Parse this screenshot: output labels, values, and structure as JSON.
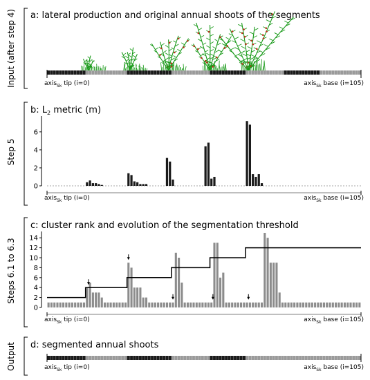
{
  "panels": {
    "a": {
      "side_label": "Input (after step 4)",
      "title": "a: lateral production and original annual shoots of the segments",
      "tip_label": [
        "axis",
        "Sk",
        " tip (i=0)"
      ],
      "base_label": [
        "axis",
        "Sk",
        " base (i=105)"
      ]
    },
    "b": {
      "side_label": "Step 5",
      "title": [
        "b: L",
        "2",
        " metric (m)"
      ],
      "tip_label": [
        "axis",
        "Sk",
        " tip (i=0)"
      ],
      "base_label": [
        "axis",
        "Sk",
        " base (i=105)"
      ]
    },
    "c": {
      "side_label": "Steps 6.1 to 6.3",
      "title": "c: cluster rank and evolution of the segmentation threshold",
      "tip_label": [
        "axis",
        "Sk",
        " tip (i=0)"
      ],
      "base_label": [
        "axis",
        "Sk",
        " base (i=105)"
      ]
    },
    "d": {
      "side_label": "Output",
      "title": "d: segmented annual shoots",
      "tip_label": [
        "axis",
        "Sk",
        " tip (i=0)"
      ],
      "base_label": [
        "axis",
        "Sk",
        " base (i=105)"
      ]
    }
  },
  "colors": {
    "bar_b": "#1a1a1a",
    "bar_c": "#8c8c8c",
    "line": "#000000",
    "shoot": "#1a9a1a",
    "fruit": "#c0301a",
    "segment_dark": "#1a1a1a",
    "segment_light": "#9a9a9a"
  },
  "chart_data": [
    {
      "type": "bar",
      "panel": "b",
      "x": [
        13,
        14,
        15,
        16,
        17,
        18,
        27,
        28,
        29,
        30,
        31,
        32,
        33,
        40,
        41,
        42,
        53,
        54,
        55,
        56,
        67,
        68,
        69,
        70,
        71,
        72
      ],
      "values": [
        0.4,
        0.6,
        0.3,
        0.3,
        0.2,
        0.1,
        1.4,
        1.2,
        0.5,
        0.4,
        0.2,
        0.2,
        0.2,
        3.1,
        2.7,
        0.7,
        4.4,
        4.8,
        0.8,
        1.0,
        7.2,
        6.8,
        1.3,
        1.0,
        1.3,
        0.3
      ],
      "yticks": [
        0,
        2,
        4,
        6
      ],
      "ylim": [
        0,
        7.6
      ],
      "baseline_dashed": true
    },
    {
      "type": "bar",
      "panel": "c",
      "x_count": 106,
      "values": [
        1,
        1,
        1,
        1,
        1,
        1,
        1,
        1,
        1,
        1,
        1,
        1,
        1,
        4,
        5,
        3,
        3,
        3,
        2,
        1,
        1,
        1,
        1,
        1,
        1,
        1,
        1,
        9,
        8,
        4,
        4,
        4,
        2,
        2,
        1,
        1,
        1,
        1,
        1,
        1,
        1,
        1,
        1,
        11,
        10,
        5,
        1,
        1,
        1,
        1,
        1,
        1,
        1,
        1,
        1,
        1,
        13,
        13,
        6,
        7,
        1,
        1,
        1,
        1,
        1,
        1,
        1,
        1,
        1,
        1,
        1,
        1,
        1,
        15,
        14,
        9,
        9,
        9,
        3,
        1,
        1,
        1,
        1,
        1,
        1,
        1,
        1,
        1,
        1,
        1,
        1,
        1,
        1,
        1,
        1,
        1,
        1,
        1,
        1,
        1,
        1,
        1,
        1,
        1,
        1,
        1
      ],
      "threshold_steps": [
        {
          "from": 0,
          "to": 13,
          "value": 2
        },
        {
          "from": 13,
          "to": 27,
          "value": 4
        },
        {
          "from": 27,
          "to": 42,
          "value": 6
        },
        {
          "from": 42,
          "to": 55,
          "value": 8
        },
        {
          "from": 55,
          "to": 67,
          "value": 10
        },
        {
          "from": 67,
          "to": 106,
          "value": 12
        }
      ],
      "cluster_marks_x": [
        13.5,
        27,
        42,
        55.5,
        67.5
      ],
      "yticks": [
        0,
        2,
        4,
        6,
        8,
        10,
        12,
        14
      ],
      "ylim": [
        0,
        15
      ]
    }
  ],
  "segments": {
    "a": [
      {
        "from": 0,
        "to": 13,
        "tone": "dark"
      },
      {
        "from": 13,
        "to": 27,
        "tone": "light"
      },
      {
        "from": 27,
        "to": 42,
        "tone": "dark"
      },
      {
        "from": 42,
        "to": 55,
        "tone": "light"
      },
      {
        "from": 55,
        "to": 67,
        "tone": "dark"
      },
      {
        "from": 67,
        "to": 80,
        "tone": "light"
      },
      {
        "from": 80,
        "to": 92,
        "tone": "dark"
      },
      {
        "from": 92,
        "to": 106,
        "tone": "light"
      }
    ],
    "d": [
      {
        "from": 0,
        "to": 13,
        "tone": "dark"
      },
      {
        "from": 13,
        "to": 27,
        "tone": "light"
      },
      {
        "from": 27,
        "to": 42,
        "tone": "dark"
      },
      {
        "from": 42,
        "to": 55,
        "tone": "light"
      },
      {
        "from": 55,
        "to": 67,
        "tone": "dark"
      },
      {
        "from": 67,
        "to": 106,
        "tone": "light"
      }
    ]
  },
  "shoots": [
    {
      "x": 14,
      "size": 0.35
    },
    {
      "x": 28,
      "size": 0.55
    },
    {
      "x": 41,
      "size": 0.8
    },
    {
      "x": 55,
      "size": 1.1
    },
    {
      "x": 68,
      "size": 1.45
    }
  ]
}
